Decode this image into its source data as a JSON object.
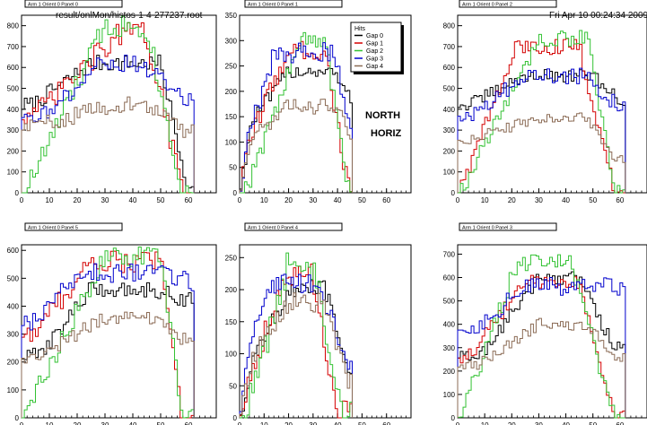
{
  "header": {
    "filename": "result/onlMon/histos-1-4-277237.root",
    "timestamp": "Fri Apr 10 00:24:34 2009"
  },
  "annotation": {
    "line1": "NORTH",
    "line2": "HORIZ"
  },
  "legend": {
    "title": "Hits",
    "entries": [
      "Gap 0",
      "Gap 1",
      "Gap 2",
      "Gap 3",
      "Gap 4"
    ]
  },
  "colors": {
    "Gap 0": "#000000",
    "Gap 1": "#d40000",
    "Gap 2": "#33c233",
    "Gap 3": "#0000cc",
    "Gap 4": "#8b6b55"
  },
  "chart_data": [
    {
      "type": "line",
      "title": "Arm 1 Orient 0 Panel 0",
      "xlim": [
        0,
        70
      ],
      "ylim": [
        0,
        850
      ],
      "xticks": [
        0,
        10,
        20,
        30,
        40,
        50,
        60
      ],
      "yticks": [
        0,
        100,
        200,
        300,
        400,
        500,
        600,
        700,
        800
      ],
      "x_range": [
        0,
        62
      ],
      "series": [
        {
          "name": "Gap 0",
          "shape": "trap",
          "params": [
            0,
            62,
            4,
            25,
            50,
            60,
            420,
            620,
            40,
            8
          ]
        },
        {
          "name": "Gap 1",
          "shape": "trap",
          "params": [
            0,
            62,
            6,
            35,
            45,
            58,
            380,
            760,
            60,
            0
          ]
        },
        {
          "name": "Gap 2",
          "shape": "trap",
          "params": [
            0,
            62,
            2,
            30,
            45,
            58,
            20,
            800,
            60,
            0
          ]
        },
        {
          "name": "Gap 3",
          "shape": "trap",
          "params": [
            0,
            62,
            10,
            28,
            42,
            60,
            380,
            620,
            40,
            440
          ]
        },
        {
          "name": "Gap 4",
          "shape": "trap",
          "params": [
            0,
            62,
            6,
            32,
            45,
            58,
            320,
            420,
            40,
            300
          ]
        }
      ]
    },
    {
      "type": "line",
      "title": "Arm 1 Orient 0 Panel 1",
      "xlim": [
        0,
        70
      ],
      "ylim": [
        0,
        350
      ],
      "xticks": [
        0,
        10,
        20,
        30,
        40,
        50,
        60
      ],
      "yticks": [
        0,
        50,
        100,
        150,
        200,
        250,
        300,
        350
      ],
      "x_range": [
        0,
        46
      ],
      "series": [
        {
          "name": "Gap 0",
          "shape": "trap",
          "params": [
            0,
            46,
            5,
            20,
            38,
            44,
            140,
            240,
            15,
            190
          ]
        },
        {
          "name": "Gap 1",
          "shape": "trap",
          "params": [
            0,
            46,
            5,
            20,
            35,
            44,
            120,
            280,
            20,
            20
          ]
        },
        {
          "name": "Gap 2",
          "shape": "trap",
          "params": [
            0,
            46,
            3,
            25,
            35,
            44,
            10,
            300,
            20,
            20
          ]
        },
        {
          "name": "Gap 3",
          "shape": "trap",
          "params": [
            0,
            46,
            4,
            15,
            38,
            44,
            110,
            280,
            25,
            150
          ]
        },
        {
          "name": "Gap 4",
          "shape": "trap",
          "params": [
            0,
            46,
            5,
            20,
            40,
            44,
            110,
            170,
            15,
            120
          ]
        }
      ]
    },
    {
      "type": "line",
      "title": "Arm 1 Orient 0 Panel 2",
      "xlim": [
        0,
        70
      ],
      "ylim": [
        0,
        850
      ],
      "xticks": [
        0,
        10,
        20,
        30,
        40,
        50,
        60
      ],
      "yticks": [
        0,
        100,
        200,
        300,
        400,
        500,
        600,
        700,
        800
      ],
      "x_range": [
        0,
        62
      ],
      "series": [
        {
          "name": "Gap 0",
          "shape": "trap",
          "params": [
            0,
            62,
            4,
            25,
            50,
            60,
            420,
            560,
            30,
            440
          ]
        },
        {
          "name": "Gap 1",
          "shape": "trap",
          "params": [
            0,
            62,
            4,
            22,
            45,
            58,
            120,
            700,
            40,
            0
          ]
        },
        {
          "name": "Gap 2",
          "shape": "trap",
          "params": [
            0,
            62,
            2,
            30,
            48,
            58,
            20,
            740,
            40,
            0
          ]
        },
        {
          "name": "Gap 3",
          "shape": "trap",
          "params": [
            0,
            62,
            6,
            25,
            48,
            60,
            380,
            560,
            40,
            400
          ]
        },
        {
          "name": "Gap 4",
          "shape": "trap",
          "params": [
            0,
            62,
            6,
            30,
            48,
            58,
            260,
            360,
            25,
            160
          ]
        }
      ]
    },
    {
      "type": "line",
      "title": "Arm 1 Orient 0 Panel 5",
      "xlim": [
        0,
        70
      ],
      "ylim": [
        0,
        620
      ],
      "xticks": [
        0,
        10,
        20,
        30,
        40,
        50,
        60
      ],
      "yticks": [
        0,
        100,
        200,
        300,
        400,
        500,
        600
      ],
      "x_range": [
        0,
        62
      ],
      "series": [
        {
          "name": "Gap 0",
          "shape": "trap",
          "params": [
            0,
            62,
            6,
            25,
            48,
            60,
            220,
            460,
            30,
            420
          ]
        },
        {
          "name": "Gap 1",
          "shape": "trap",
          "params": [
            0,
            62,
            4,
            25,
            50,
            58,
            300,
            560,
            40,
            0
          ]
        },
        {
          "name": "Gap 2",
          "shape": "trap",
          "params": [
            0,
            62,
            2,
            30,
            50,
            58,
            20,
            580,
            40,
            0
          ]
        },
        {
          "name": "Gap 3",
          "shape": "trap",
          "params": [
            0,
            62,
            6,
            20,
            48,
            62,
            340,
            520,
            35,
            480
          ]
        },
        {
          "name": "Gap 4",
          "shape": "trap",
          "params": [
            0,
            62,
            6,
            30,
            50,
            58,
            220,
            360,
            25,
            280
          ]
        }
      ]
    },
    {
      "type": "line",
      "title": "Arm 1 Orient 0 Panel 4",
      "xlim": [
        0,
        70
      ],
      "ylim": [
        0,
        270
      ],
      "xticks": [
        0,
        10,
        20,
        30,
        40,
        50,
        60
      ],
      "yticks": [
        0,
        50,
        100,
        150,
        200,
        250
      ],
      "x_range": [
        0,
        46
      ],
      "series": [
        {
          "name": "Gap 0",
          "shape": "trap",
          "params": [
            0,
            46,
            8,
            22,
            35,
            45,
            120,
            200,
            15,
            60
          ]
        },
        {
          "name": "Gap 1",
          "shape": "trap",
          "params": [
            0,
            46,
            4,
            18,
            30,
            40,
            60,
            220,
            20,
            10
          ]
        },
        {
          "name": "Gap 2",
          "shape": "trap",
          "params": [
            0,
            46,
            3,
            20,
            30,
            42,
            10,
            240,
            25,
            10
          ]
        },
        {
          "name": "Gap 3",
          "shape": "trap",
          "params": [
            0,
            46,
            6,
            15,
            32,
            45,
            150,
            210,
            15,
            80
          ]
        },
        {
          "name": "Gap 4",
          "shape": "trap",
          "params": [
            0,
            46,
            6,
            20,
            35,
            44,
            100,
            180,
            15,
            60
          ]
        }
      ]
    },
    {
      "type": "line",
      "title": "Arm 1 Orient 0 Panel 3",
      "xlim": [
        0,
        70
      ],
      "ylim": [
        0,
        740
      ],
      "xticks": [
        0,
        10,
        20,
        30,
        40,
        50,
        60
      ],
      "yticks": [
        0,
        100,
        200,
        300,
        400,
        500,
        600,
        700
      ],
      "x_range": [
        0,
        62
      ],
      "series": [
        {
          "name": "Gap 0",
          "shape": "trap",
          "params": [
            0,
            62,
            8,
            30,
            45,
            58,
            260,
            600,
            30,
            300
          ]
        },
        {
          "name": "Gap 1",
          "shape": "trap",
          "params": [
            0,
            62,
            4,
            25,
            45,
            58,
            260,
            580,
            30,
            0
          ]
        },
        {
          "name": "Gap 2",
          "shape": "trap",
          "params": [
            0,
            62,
            2,
            22,
            42,
            58,
            30,
            660,
            40,
            0
          ]
        },
        {
          "name": "Gap 3",
          "shape": "trap",
          "params": [
            0,
            62,
            6,
            25,
            45,
            60,
            380,
            560,
            40,
            560
          ]
        },
        {
          "name": "Gap 4",
          "shape": "trap",
          "params": [
            0,
            62,
            6,
            30,
            48,
            58,
            220,
            400,
            25,
            260
          ]
        }
      ]
    }
  ]
}
